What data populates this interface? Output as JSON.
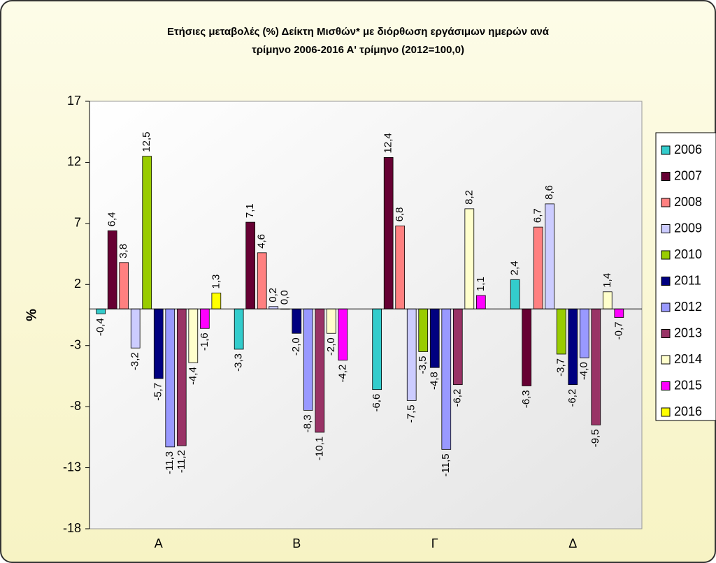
{
  "chart_data": {
    "type": "bar",
    "title": [
      "Ετήσιες μεταβολές (%) Δείκτη Μισθών* με διόρθωση εργάσιμων ημερών ανά",
      "τρίμηνο 2006-2016 Α' τρίμηνο (2012=100,0)"
    ],
    "ylabel": "%",
    "categories": [
      "Α",
      "Β",
      "Γ",
      "Δ"
    ],
    "ylim": [
      -18,
      17
    ],
    "yticks": [
      -18,
      -13,
      -8,
      -3,
      2,
      7,
      12,
      17
    ],
    "grid": false,
    "legend": "right",
    "series": [
      {
        "name": "2006",
        "color": "#33cccc",
        "values": [
          -0.4,
          -3.3,
          -6.6,
          2.4
        ],
        "value_labels": [
          "-0,4",
          "-3,3",
          "-6,6",
          "2,4"
        ]
      },
      {
        "name": "2007",
        "color": "#660033",
        "values": [
          6.4,
          7.1,
          12.4,
          -6.3
        ],
        "value_labels": [
          "6,4",
          "7,1",
          "12,4",
          "-6,3"
        ]
      },
      {
        "name": "2008",
        "color": "#ff8080",
        "values": [
          3.8,
          4.6,
          6.8,
          6.7
        ],
        "value_labels": [
          "3,8",
          "4,6",
          "6,8",
          "6,7"
        ]
      },
      {
        "name": "2009",
        "color": "#ccccff",
        "values": [
          -3.2,
          0.2,
          -7.5,
          8.6
        ],
        "value_labels": [
          "-3,2",
          "0,2",
          "-7,5",
          "8,6"
        ]
      },
      {
        "name": "2010",
        "color": "#99cc00",
        "values": [
          12.5,
          0.0,
          -3.5,
          -3.7
        ],
        "value_labels": [
          "12,5",
          "0,0",
          "-3,5",
          "-3,7"
        ]
      },
      {
        "name": "2011",
        "color": "#000080",
        "values": [
          -5.7,
          -2.0,
          -4.8,
          -6.2
        ],
        "value_labels": [
          "-5,7",
          "-2,0",
          "-4,8",
          "-6,2"
        ]
      },
      {
        "name": "2012",
        "color": "#9999ff",
        "values": [
          -11.3,
          -8.3,
          -11.5,
          -4.0
        ],
        "value_labels": [
          "-11,3",
          "-8,3",
          "-11,5",
          "-4,0"
        ]
      },
      {
        "name": "2013",
        "color": "#993366",
        "values": [
          -11.2,
          -10.1,
          -6.2,
          -9.5
        ],
        "value_labels": [
          "-11,2",
          "-10,1",
          "-6,2",
          "-9,5"
        ]
      },
      {
        "name": "2014",
        "color": "#ffffcc",
        "values": [
          -4.4,
          -2.0,
          8.2,
          1.4
        ],
        "value_labels": [
          "-4,4",
          "-2,0",
          "8,2",
          "1,4"
        ]
      },
      {
        "name": "2015",
        "color": "#ff00ff",
        "values": [
          -1.6,
          -4.2,
          1.1,
          -0.7
        ],
        "value_labels": [
          "-1,6",
          "-4,2",
          "1,1",
          "-0,7"
        ]
      },
      {
        "name": "2016",
        "color": "#ffff00",
        "values": [
          1.3,
          null,
          null,
          null
        ],
        "value_labels": [
          "1,3",
          null,
          null,
          null
        ]
      }
    ]
  }
}
